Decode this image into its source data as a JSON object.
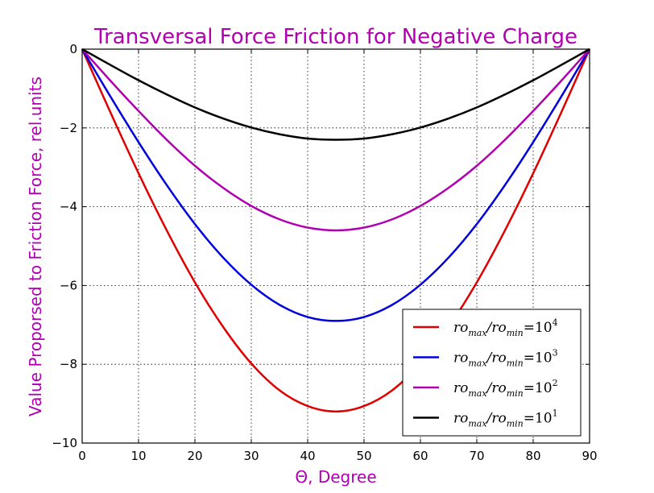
{
  "chart_data": {
    "type": "line",
    "title": "Transversal Force Friction for Negative Charge",
    "xlabel": "Θ, Degree",
    "ylabel": "Value Proporsed to Friction Force, rel.units",
    "xlim": [
      0,
      90
    ],
    "ylim": [
      -10,
      0
    ],
    "xticks": [
      0,
      10,
      20,
      30,
      40,
      50,
      60,
      70,
      80,
      90
    ],
    "yticks": [
      0,
      -2,
      -4,
      -6,
      -8,
      -10
    ],
    "xtick_labels": [
      "0",
      "10",
      "20",
      "30",
      "40",
      "50",
      "60",
      "70",
      "80",
      "90"
    ],
    "ytick_labels": [
      "0",
      "−2",
      "−4",
      "−6",
      "−8",
      "−10"
    ],
    "grid": true,
    "legend_position": "bottom-right",
    "x": [
      0,
      5,
      10,
      15,
      20,
      25,
      30,
      35,
      40,
      45,
      50,
      55,
      60,
      65,
      70,
      75,
      80,
      85,
      90
    ],
    "series": [
      {
        "legend": {
          "num": "ro",
          "num_sub": "max",
          "den": "ro",
          "den_sub": "min",
          "base": "10",
          "exp": "4"
        },
        "color": "#e00000",
        "values": [
          0,
          -1.6,
          -3.15,
          -4.6,
          -5.92,
          -7.05,
          -7.98,
          -8.66,
          -9.06,
          -9.2,
          -9.06,
          -8.66,
          -7.98,
          -7.05,
          -5.92,
          -4.6,
          -3.15,
          -1.6,
          0
        ]
      },
      {
        "legend": {
          "num": "ro",
          "num_sub": "max",
          "den": "ro",
          "den_sub": "min",
          "base": "10",
          "exp": "3"
        },
        "color": "#0000dd",
        "values": [
          0,
          -1.2,
          -2.36,
          -3.45,
          -4.44,
          -5.29,
          -5.98,
          -6.49,
          -6.8,
          -6.9,
          -6.8,
          -6.49,
          -5.98,
          -5.29,
          -4.44,
          -3.45,
          -2.36,
          -1.2,
          0
        ]
      },
      {
        "legend": {
          "num": "ro",
          "num_sub": "max",
          "den": "ro",
          "den_sub": "min",
          "base": "10",
          "exp": "2"
        },
        "color": "#b000b0",
        "values": [
          0,
          -0.8,
          -1.57,
          -2.3,
          -2.96,
          -3.52,
          -3.98,
          -4.32,
          -4.53,
          -4.6,
          -4.53,
          -4.32,
          -3.98,
          -3.52,
          -2.96,
          -2.3,
          -1.57,
          -0.8,
          0
        ]
      },
      {
        "legend": {
          "num": "ro",
          "num_sub": "max",
          "den": "ro",
          "den_sub": "min",
          "base": "10",
          "exp": "1"
        },
        "color": "#000000",
        "values": [
          0,
          -0.4,
          -0.79,
          -1.15,
          -1.48,
          -1.76,
          -1.99,
          -2.16,
          -2.27,
          -2.3,
          -2.27,
          -2.16,
          -1.99,
          -1.76,
          -1.48,
          -1.15,
          -0.79,
          -0.4,
          0
        ]
      }
    ]
  },
  "colors": {
    "title": "#b000b0",
    "axis_labels": "#b000b0"
  }
}
